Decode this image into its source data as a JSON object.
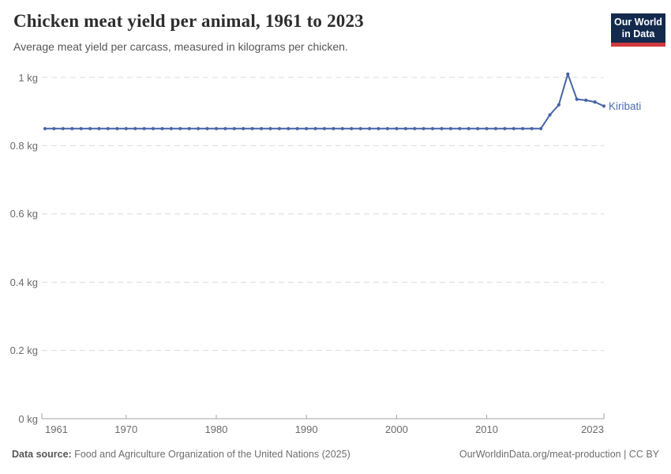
{
  "header": {
    "title": "Chicken meat yield per animal, 1961 to 2023",
    "subtitle": "Average meat yield per carcass, measured in kilograms per chicken.",
    "logo": {
      "line1": "Our World",
      "line2": "in Data",
      "bg_color": "#132a4d",
      "bar_color": "#d23a3f",
      "text_color": "#ffffff"
    }
  },
  "chart_data": {
    "type": "line",
    "title": "Chicken meat yield per animal, 1961 to 2023",
    "xlabel": "",
    "ylabel": "",
    "xlim": [
      1961,
      2023
    ],
    "ylim": [
      0,
      1
    ],
    "grid": "horizontal-dashed",
    "legend_position": "end-of-line-label",
    "xticks": [
      {
        "value": 1961,
        "label": "1961"
      },
      {
        "value": 1970,
        "label": "1970"
      },
      {
        "value": 1980,
        "label": "1980"
      },
      {
        "value": 1990,
        "label": "1990"
      },
      {
        "value": 2000,
        "label": "2000"
      },
      {
        "value": 2010,
        "label": "2010"
      },
      {
        "value": 2023,
        "label": "2023"
      }
    ],
    "yticks": [
      {
        "value": 0,
        "label": "0 kg"
      },
      {
        "value": 0.2,
        "label": "0.2 kg"
      },
      {
        "value": 0.4,
        "label": "0.4 kg"
      },
      {
        "value": 0.6,
        "label": "0.6 kg"
      },
      {
        "value": 0.8,
        "label": "0.8 kg"
      },
      {
        "value": 1,
        "label": "1 kg"
      }
    ],
    "series": [
      {
        "name": "Kiribati",
        "color": "#4663a6",
        "label_color": "#4d6bb3",
        "x": [
          1961,
          1962,
          1963,
          1964,
          1965,
          1966,
          1967,
          1968,
          1969,
          1970,
          1971,
          1972,
          1973,
          1974,
          1975,
          1976,
          1977,
          1978,
          1979,
          1980,
          1981,
          1982,
          1983,
          1984,
          1985,
          1986,
          1987,
          1988,
          1989,
          1990,
          1991,
          1992,
          1993,
          1994,
          1995,
          1996,
          1997,
          1998,
          1999,
          2000,
          2001,
          2002,
          2003,
          2004,
          2005,
          2006,
          2007,
          2008,
          2009,
          2010,
          2011,
          2012,
          2013,
          2014,
          2015,
          2016,
          2017,
          2018,
          2019,
          2020,
          2021,
          2022,
          2023
        ],
        "values": [
          0.85,
          0.85,
          0.85,
          0.85,
          0.85,
          0.85,
          0.85,
          0.85,
          0.85,
          0.85,
          0.85,
          0.85,
          0.85,
          0.85,
          0.85,
          0.85,
          0.85,
          0.85,
          0.85,
          0.85,
          0.85,
          0.85,
          0.85,
          0.85,
          0.85,
          0.85,
          0.85,
          0.85,
          0.85,
          0.85,
          0.85,
          0.85,
          0.85,
          0.85,
          0.85,
          0.85,
          0.85,
          0.85,
          0.85,
          0.85,
          0.85,
          0.85,
          0.85,
          0.85,
          0.85,
          0.85,
          0.85,
          0.85,
          0.85,
          0.85,
          0.85,
          0.85,
          0.85,
          0.85,
          0.85,
          0.85,
          0.89,
          0.92,
          1.01,
          0.936,
          0.933,
          0.928,
          0.916
        ]
      }
    ]
  },
  "colors": {
    "gridline": "#dcdcdc",
    "axis_line": "#a3a3a3",
    "tick_label": "#6b6b6b"
  },
  "footer": {
    "datasource_label": "Data source:",
    "datasource_text": "Food and Agriculture Organization of the United Nations (2025)",
    "attribution": "OurWorldinData.org/meat-production | CC BY"
  }
}
